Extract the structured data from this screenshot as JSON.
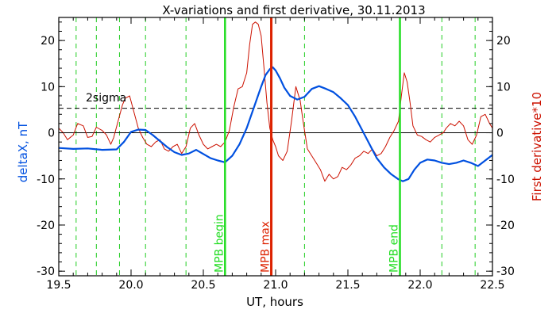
{
  "chart_data": {
    "type": "line",
    "title": "X-variations and first derivative, 30.11.2013",
    "xlabel": "UT, hours",
    "ylabel_left": "deltaX, nT",
    "ylabel_right": "First derivative*10",
    "xlim": [
      19.5,
      22.5
    ],
    "ylim": [
      -31,
      25
    ],
    "x_ticks": [
      "19.5",
      "20.0",
      "20.5",
      "21.0",
      "21.5",
      "22.0",
      "22.5"
    ],
    "x_tick_values": [
      19.5,
      20.0,
      20.5,
      21.0,
      21.5,
      22.0,
      22.5
    ],
    "y_ticks": [
      "-30",
      "-20",
      "-10",
      "0",
      "10",
      "20"
    ],
    "y_tick_values": [
      -30,
      -20,
      -10,
      0,
      10,
      20
    ],
    "colors": {
      "deltax": "#0050e0",
      "derivative": "#cc1100",
      "dashed_vertical": "#22cc22",
      "mpb_markers": "#22dd22",
      "mpb_max": "#dd2200",
      "sigma": "#000000",
      "zero": "#000000"
    },
    "series": [
      {
        "name": "deltaX, nT",
        "x": [
          19.5,
          19.6,
          19.7,
          19.8,
          19.9,
          19.95,
          20.0,
          20.05,
          20.1,
          20.15,
          20.2,
          20.25,
          20.3,
          20.35,
          20.4,
          20.45,
          20.5,
          20.55,
          20.6,
          20.65,
          20.7,
          20.75,
          20.8,
          20.85,
          20.9,
          20.93,
          20.96,
          20.98,
          21.0,
          21.03,
          21.06,
          21.1,
          21.15,
          21.2,
          21.25,
          21.3,
          21.35,
          21.4,
          21.45,
          21.5,
          21.55,
          21.6,
          21.65,
          21.7,
          21.75,
          21.8,
          21.85,
          21.88,
          21.92,
          21.96,
          22.0,
          22.05,
          22.1,
          22.15,
          22.2,
          22.25,
          22.3,
          22.35,
          22.4,
          22.45,
          22.5
        ],
        "y": [
          -3.3,
          -3.5,
          -3.4,
          -3.7,
          -3.6,
          -2.0,
          0.2,
          0.7,
          0.6,
          -0.5,
          -1.8,
          -3.1,
          -4.2,
          -4.8,
          -4.5,
          -3.7,
          -4.6,
          -5.5,
          -6.0,
          -6.4,
          -5.0,
          -2.5,
          1.0,
          5.5,
          10.0,
          12.5,
          13.8,
          14.2,
          13.5,
          11.8,
          9.8,
          8.0,
          7.2,
          7.8,
          9.5,
          10.1,
          9.5,
          8.8,
          7.5,
          6.0,
          3.5,
          0.5,
          -2.5,
          -5.5,
          -7.5,
          -9.0,
          -10.1,
          -10.5,
          -10.0,
          -8.0,
          -6.5,
          -5.8,
          -6.0,
          -6.5,
          -6.8,
          -6.5,
          -6.0,
          -6.5,
          -7.2,
          -6.0,
          -4.8
        ]
      },
      {
        "name": "First derivative*10",
        "x": [
          19.5,
          19.53,
          19.56,
          19.6,
          19.63,
          19.67,
          19.7,
          19.73,
          19.76,
          19.8,
          19.83,
          19.86,
          19.88,
          19.91,
          19.94,
          19.96,
          19.99,
          20.02,
          20.05,
          20.08,
          20.11,
          20.14,
          20.17,
          20.2,
          20.23,
          20.26,
          20.29,
          20.32,
          20.35,
          20.38,
          20.41,
          20.44,
          20.47,
          20.5,
          20.53,
          20.56,
          20.59,
          20.62,
          20.65,
          20.68,
          20.71,
          20.74,
          20.77,
          20.8,
          20.82,
          20.84,
          20.86,
          20.88,
          20.9,
          20.92,
          20.94,
          20.96,
          20.98,
          21.0,
          21.02,
          21.05,
          21.08,
          21.11,
          21.14,
          21.17,
          21.19,
          21.22,
          21.25,
          21.28,
          21.31,
          21.34,
          21.37,
          21.4,
          21.43,
          21.46,
          21.49,
          21.52,
          21.55,
          21.58,
          21.61,
          21.64,
          21.67,
          21.7,
          21.73,
          21.76,
          21.79,
          21.82,
          21.85,
          21.87,
          21.89,
          21.91,
          21.93,
          21.95,
          21.98,
          22.01,
          22.04,
          22.07,
          22.1,
          22.13,
          22.16,
          22.18,
          22.21,
          22.24,
          22.27,
          22.3,
          22.33,
          22.36,
          22.39,
          22.42,
          22.45,
          22.48,
          22.5
        ],
        "y": [
          1.0,
          0.0,
          -1.5,
          -0.5,
          2.0,
          1.5,
          -1.0,
          -0.8,
          1.2,
          0.5,
          -0.5,
          -2.5,
          -1.0,
          2.5,
          6.0,
          7.5,
          8.0,
          4.5,
          1.0,
          -1.0,
          -2.5,
          -3.0,
          -2.0,
          -1.5,
          -3.5,
          -4.0,
          -3.0,
          -2.5,
          -4.5,
          -3.0,
          1.0,
          2.0,
          -0.5,
          -2.5,
          -3.5,
          -3.0,
          -2.5,
          -3.0,
          -2.0,
          0.5,
          5.5,
          9.5,
          10.0,
          13.0,
          19.0,
          23.5,
          24.0,
          23.5,
          21.0,
          14.0,
          6.5,
          1.0,
          -1.5,
          -3.0,
          -5.0,
          -6.0,
          -4.0,
          2.5,
          10.0,
          7.0,
          2.5,
          -3.5,
          -5.0,
          -6.5,
          -8.0,
          -10.5,
          -9.0,
          -10.0,
          -9.5,
          -7.5,
          -8.0,
          -7.0,
          -5.5,
          -5.0,
          -4.0,
          -4.5,
          -3.5,
          -5.0,
          -4.5,
          -3.0,
          -1.0,
          0.5,
          2.5,
          8.0,
          13.0,
          11.0,
          6.5,
          1.5,
          -0.5,
          -0.8,
          -1.5,
          -2.0,
          -1.0,
          -0.5,
          0.0,
          1.0,
          2.0,
          1.5,
          2.5,
          1.5,
          -1.5,
          -2.5,
          -0.5,
          3.5,
          4.0,
          2.0,
          1.0
        ]
      }
    ],
    "reference_lines": {
      "sigma_label": "2sigma",
      "sigma_value": 5.3,
      "zero_value": 0
    },
    "dashed_vertical_x": [
      19.62,
      19.76,
      19.92,
      20.1,
      20.38,
      21.2,
      22.15,
      22.38
    ],
    "markers": [
      {
        "label": "MPB begin",
        "x": 20.65,
        "kind": "begin"
      },
      {
        "label": "MPB max",
        "x": 20.97,
        "kind": "max"
      },
      {
        "label": "MPB end",
        "x": 21.86,
        "kind": "end"
      }
    ]
  }
}
